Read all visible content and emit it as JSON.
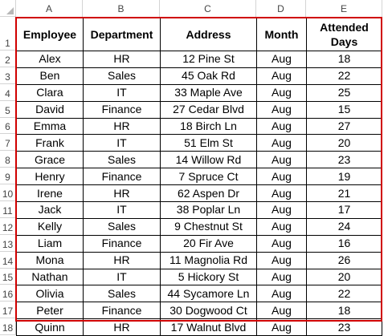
{
  "columns": [
    "A",
    "B",
    "C",
    "D",
    "E"
  ],
  "rows": [
    "1",
    "2",
    "3",
    "4",
    "5",
    "6",
    "7",
    "8",
    "9",
    "10",
    "11",
    "12",
    "13",
    "14",
    "15",
    "16",
    "17",
    "18"
  ],
  "table": {
    "headers": [
      "Employee",
      "Department",
      "Address",
      "Month",
      "Attended\nDays"
    ],
    "header_line1": [
      "Employee",
      "Department",
      "Address",
      "Month",
      "Attended"
    ],
    "header_line2": [
      "",
      "",
      "",
      "",
      "Days"
    ],
    "records": [
      [
        "Alex",
        "HR",
        "12 Pine St",
        "Aug",
        "18"
      ],
      [
        "Ben",
        "Sales",
        "45 Oak Rd",
        "Aug",
        "22"
      ],
      [
        "Clara",
        "IT",
        "33 Maple Ave",
        "Aug",
        "25"
      ],
      [
        "David",
        "Finance",
        "27 Cedar Blvd",
        "Aug",
        "15"
      ],
      [
        "Emma",
        "HR",
        "18 Birch Ln",
        "Aug",
        "27"
      ],
      [
        "Frank",
        "IT",
        "51 Elm St",
        "Aug",
        "20"
      ],
      [
        "Grace",
        "Sales",
        "14 Willow Rd",
        "Aug",
        "23"
      ],
      [
        "Henry",
        "Finance",
        "7 Spruce Ct",
        "Aug",
        "19"
      ],
      [
        "Irene",
        "HR",
        "62 Aspen Dr",
        "Aug",
        "21"
      ],
      [
        "Jack",
        "IT",
        "38 Poplar Ln",
        "Aug",
        "17"
      ],
      [
        "Kelly",
        "Sales",
        "9 Chestnut St",
        "Aug",
        "24"
      ],
      [
        "Liam",
        "Finance",
        "20 Fir Ave",
        "Aug",
        "16"
      ],
      [
        "Mona",
        "HR",
        "11 Magnolia Rd",
        "Aug",
        "26"
      ],
      [
        "Nathan",
        "IT",
        "5 Hickory St",
        "Aug",
        "20"
      ],
      [
        "Olivia",
        "Sales",
        "44 Sycamore Ln",
        "Aug",
        "22"
      ],
      [
        "Peter",
        "Finance",
        "30 Dogwood Ct",
        "Aug",
        "18"
      ],
      [
        "Quinn",
        "HR",
        "17 Walnut Blvd",
        "Aug",
        "23"
      ]
    ]
  },
  "colors": {
    "selection_border": "#d00000",
    "grid_border": "#000000",
    "header_text": "#444444"
  }
}
